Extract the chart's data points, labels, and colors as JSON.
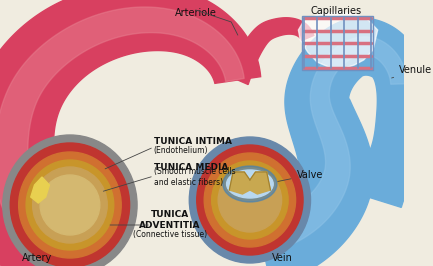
{
  "bg_color": "#f0ece0",
  "artery_color": "#d84060",
  "artery_mid": "#e06070",
  "artery_light": "#e88090",
  "artery_dark": "#b03050",
  "vein_color": "#6aacda",
  "vein_light": "#90c4e8",
  "vein_dark": "#4080b8",
  "cap_red": "#d87080",
  "cap_blue": "#7090c0",
  "outer_gray": "#888890",
  "dark_red_ring": "#c03530",
  "orange_ring": "#d07030",
  "gold_ring": "#c8952a",
  "tan_lumen": "#c8a055",
  "beige_lumen": "#d4b870",
  "valve_tan": "#c8a850",
  "valve_outline": "#a08030",
  "label_color": "#111111",
  "annotation_color": "#444444",
  "labels": {
    "arteriole": "Arteriole",
    "capillaries": "Capillaries",
    "venule": "Venule",
    "valve": "Valve",
    "artery": "Artery",
    "vein": "Vein",
    "tunica_intima": "TUNICA INTIMA",
    "tunica_intima_sub": "(Endothelium)",
    "tunica_media": "TUNICA MEDIA",
    "tunica_media_sub": "(Smooth muscle cells\nand elastic fibers)",
    "tunica_adventitia": "TUNICA\nADVENTITIA",
    "tunica_adventitia_sub": "(Connective tissue)"
  }
}
